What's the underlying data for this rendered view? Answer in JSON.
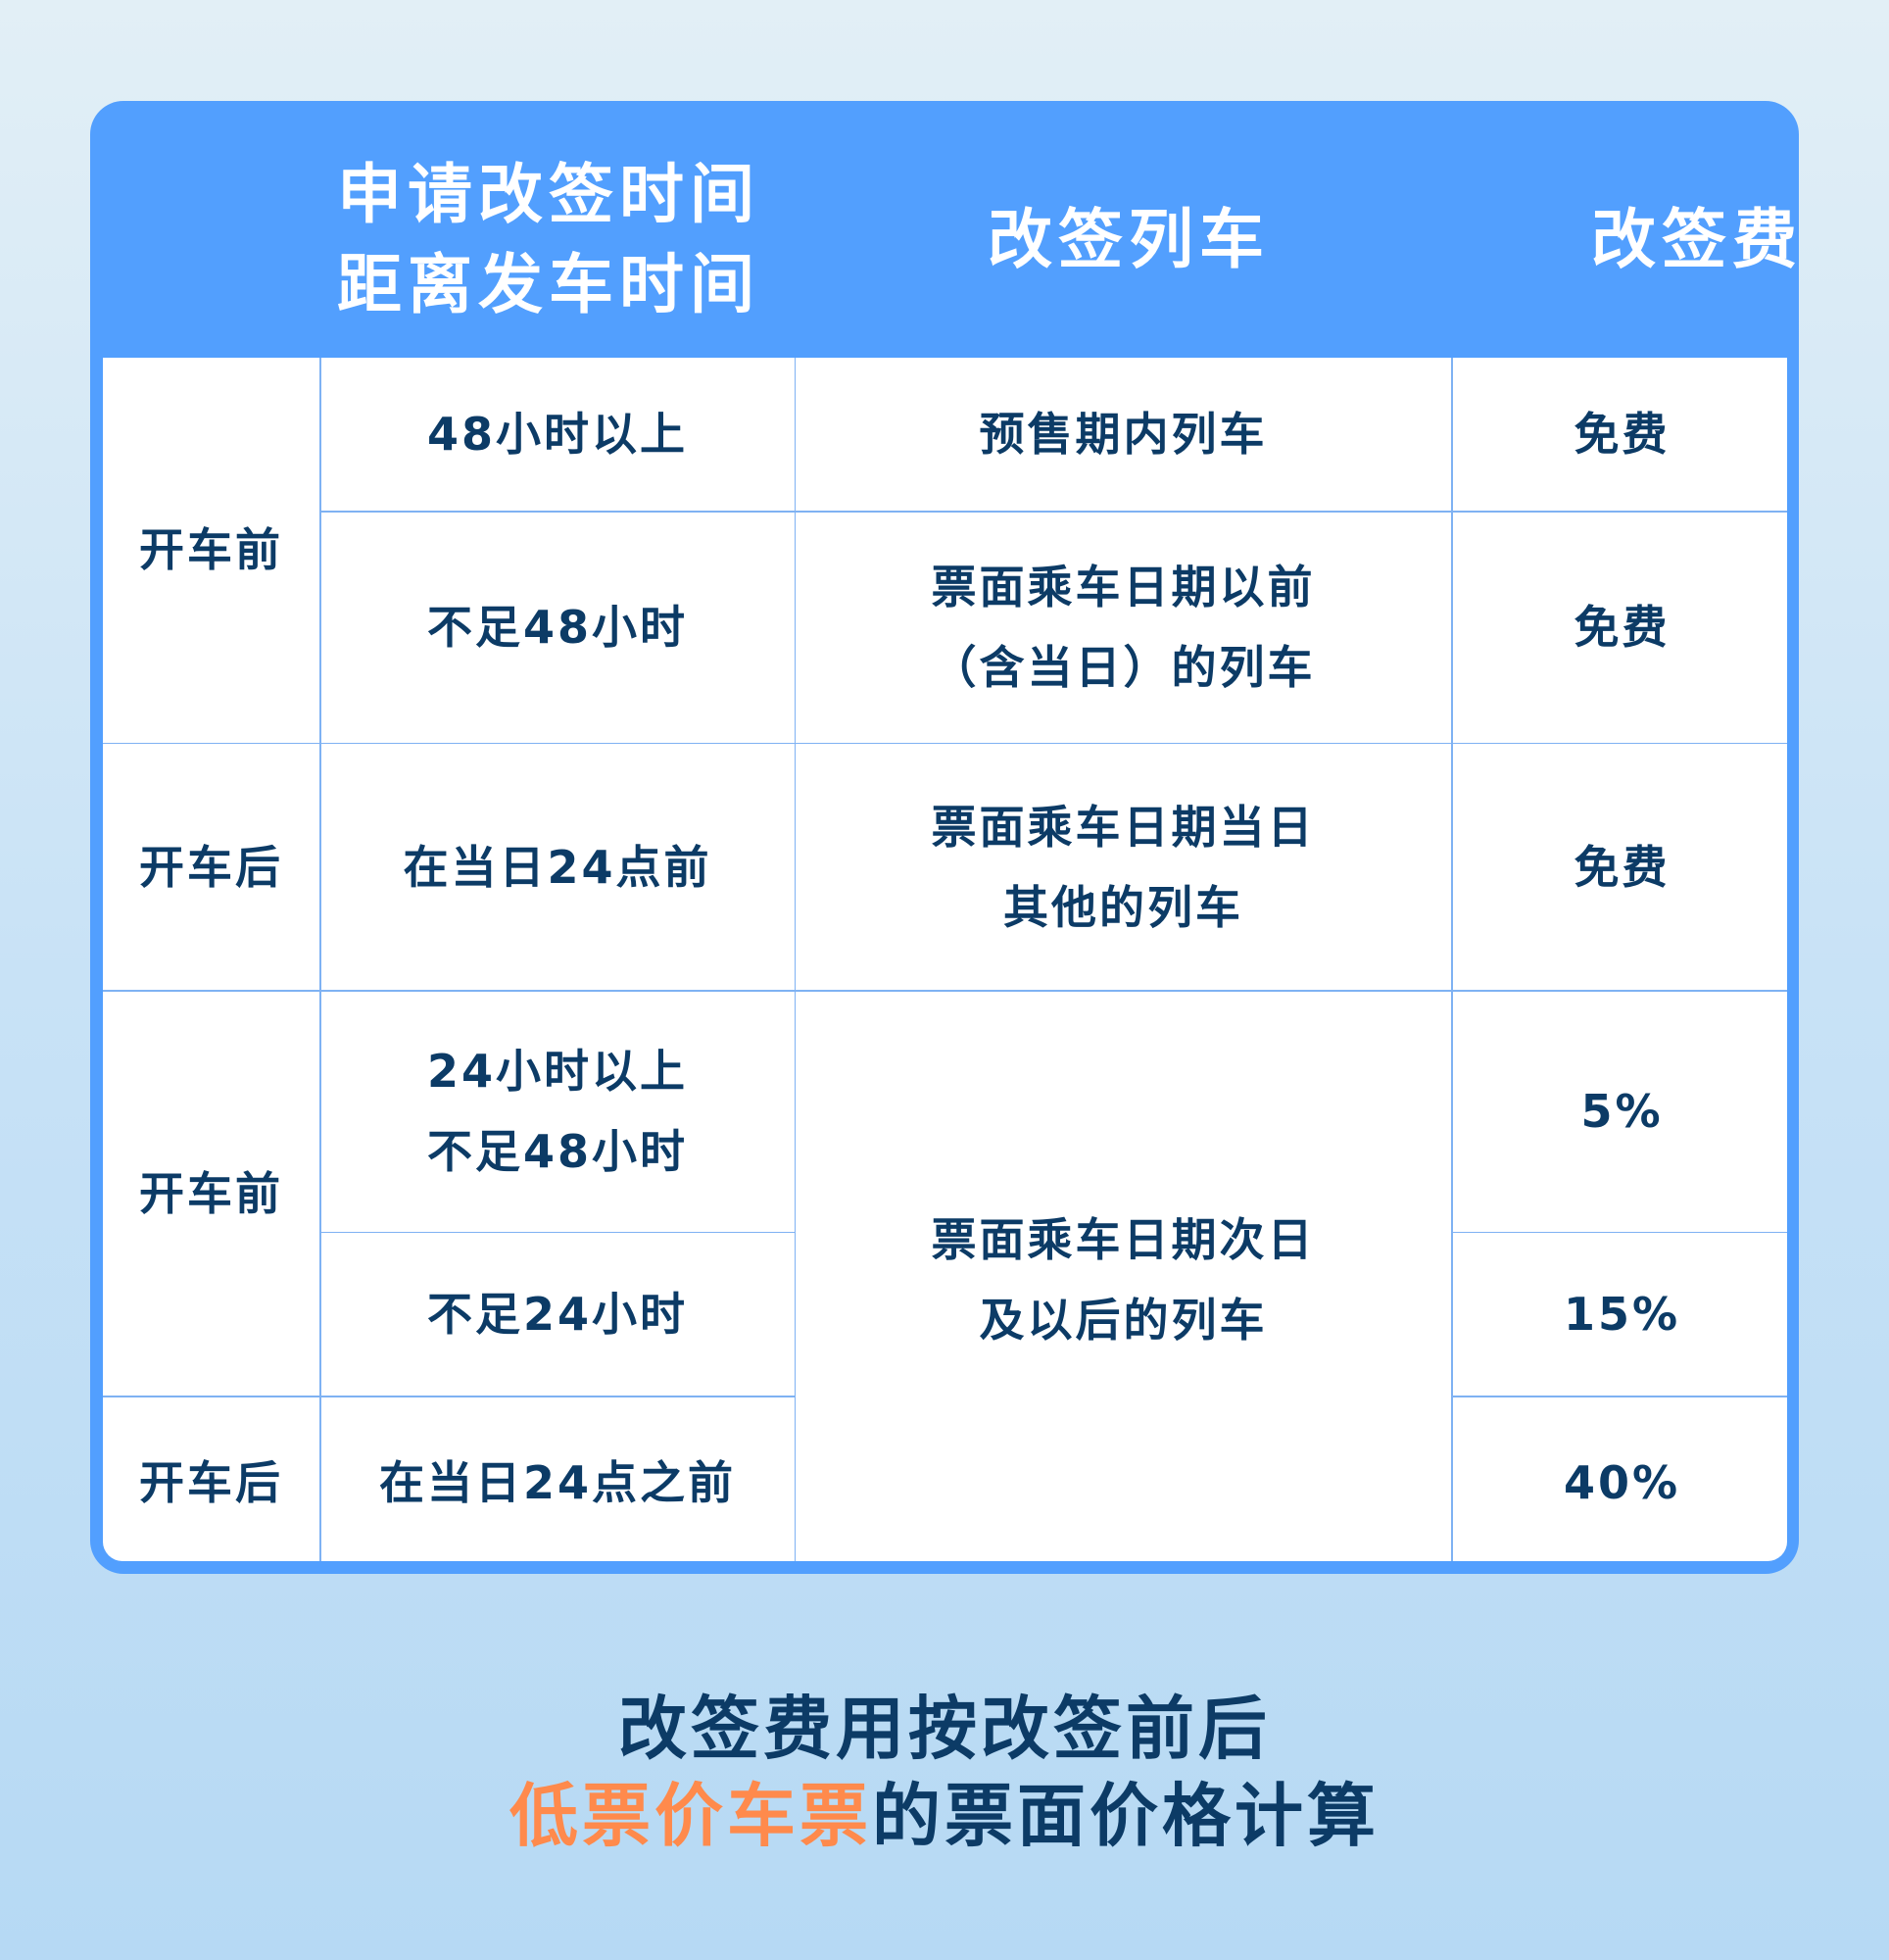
{
  "header": {
    "col_time_line1": "申请改签时间",
    "col_time_line2": "距离发车时间",
    "col_train": "改签列车",
    "col_fee": "改签费"
  },
  "rows": {
    "g1_label": "开车前",
    "r1_time": "48小时以上",
    "r1_train": "预售期内列车",
    "r1_fee": "免费",
    "r2_time": "不足48小时",
    "r2_train_line1": "票面乘车日期以前",
    "r2_train_line2": "（含当日）的列车",
    "r2_fee": "免费",
    "g2_label": "开车后",
    "r3_time": "在当日24点前",
    "r3_train_line1": "票面乘车日期当日",
    "r3_train_line2": "其他的列车",
    "r3_fee": "免费",
    "g3_label": "开车前",
    "r4_time_line1": "24小时以上",
    "r4_time_line2": "不足48小时",
    "r4_fee": "5%",
    "r5_time": "不足24小时",
    "r5_fee": "15%",
    "r456_train_line1": "票面乘车日期次日",
    "r456_train_line2": "及以后的列车",
    "g4_label": "开车后",
    "r6_time": "在当日24点之前",
    "r6_fee": "40%"
  },
  "footer": {
    "line1": "改签费用按改签前后",
    "line2_highlight": "低票价车票",
    "line2_rest": "的票面价格计算"
  },
  "colors": {
    "header_bg": "#529ffe",
    "text": "#0c3b66",
    "highlight": "#ff8a4c"
  }
}
